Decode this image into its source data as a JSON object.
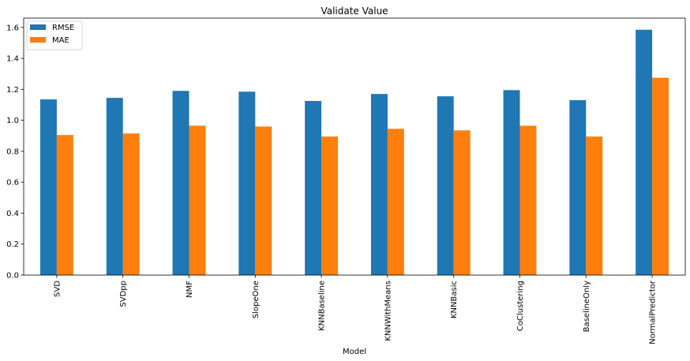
{
  "chart_data": {
    "type": "bar",
    "title": "Validate Value",
    "xlabel": "Model",
    "ylabel": "",
    "categories": [
      "SVD",
      "SVDpp",
      "NMF",
      "SlopeOne",
      "KNNBaseline",
      "KNNWithMeans",
      "KNNBasic",
      "CoClustering",
      "BaselineOnly",
      "NormalPredictor"
    ],
    "series": [
      {
        "name": "RMSE",
        "color": "#1f77b4",
        "values": [
          1.135,
          1.145,
          1.19,
          1.185,
          1.125,
          1.17,
          1.155,
          1.195,
          1.13,
          1.585
        ]
      },
      {
        "name": "MAE",
        "color": "#ff7f0e",
        "values": [
          0.905,
          0.915,
          0.965,
          0.96,
          0.895,
          0.945,
          0.935,
          0.965,
          0.895,
          1.275
        ]
      }
    ],
    "ylim": [
      0,
      1.66
    ],
    "yticks": [
      "0.0",
      "0.2",
      "0.4",
      "0.6",
      "0.8",
      "1.0",
      "1.2",
      "1.4",
      "1.6"
    ],
    "legend_position": "top-left",
    "grid": false
  }
}
